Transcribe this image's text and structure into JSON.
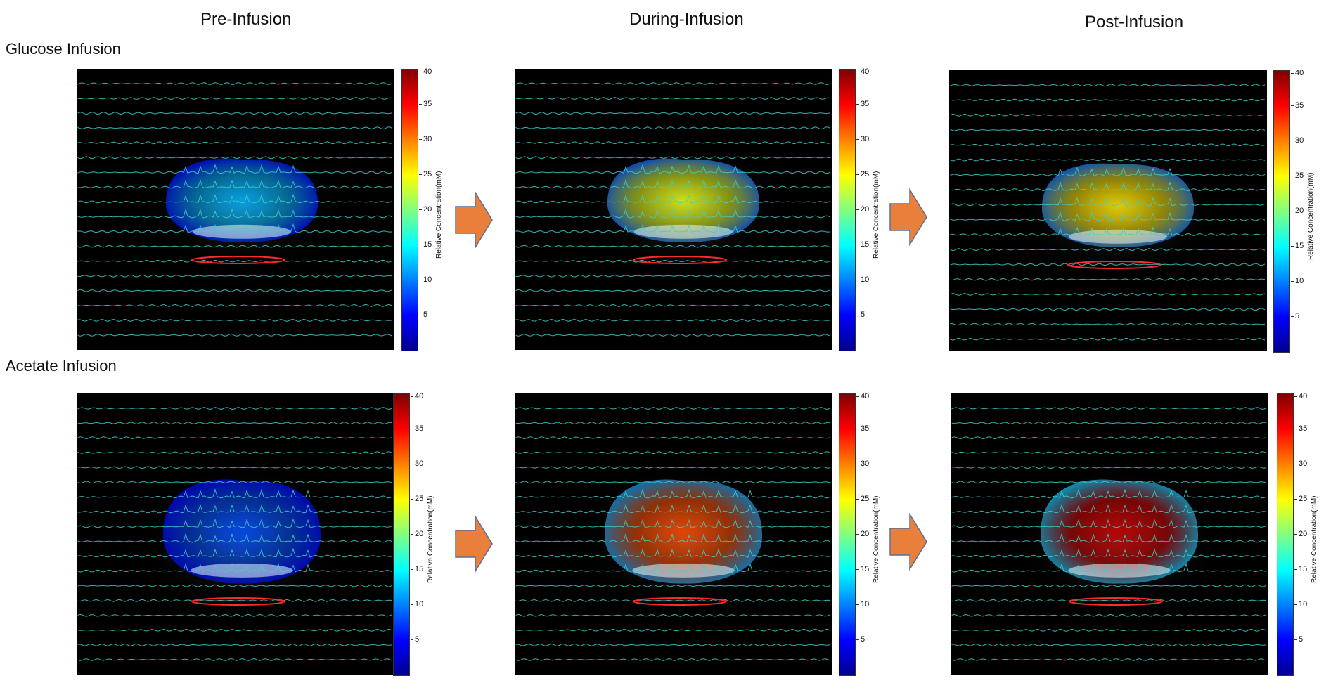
{
  "columns": {
    "pre": "Pre-Infusion",
    "during": "During-Infusion",
    "post": "Post-Infusion"
  },
  "rows": {
    "glucose": "Glucose Infusion",
    "acetate": "Acetate Infusion"
  },
  "colorbar": {
    "label": "Relative Concentration(mM)",
    "ticks": [
      "40",
      "35",
      "30",
      "25",
      "20",
      "15",
      "10",
      "5"
    ],
    "range": [
      0,
      40
    ]
  },
  "colors": {
    "arrow": "#e87f3b",
    "trace": "#3fd0c8",
    "roi_ellipse": "#ff2a2a"
  },
  "panels": [
    {
      "id": "glucose-pre",
      "intensity_mM": 12
    },
    {
      "id": "glucose-during",
      "intensity_mM": 24
    },
    {
      "id": "glucose-post",
      "intensity_mM": 26
    },
    {
      "id": "acetate-pre",
      "intensity_mM": 8
    },
    {
      "id": "acetate-during",
      "intensity_mM": 32
    },
    {
      "id": "acetate-post",
      "intensity_mM": 37
    }
  ]
}
